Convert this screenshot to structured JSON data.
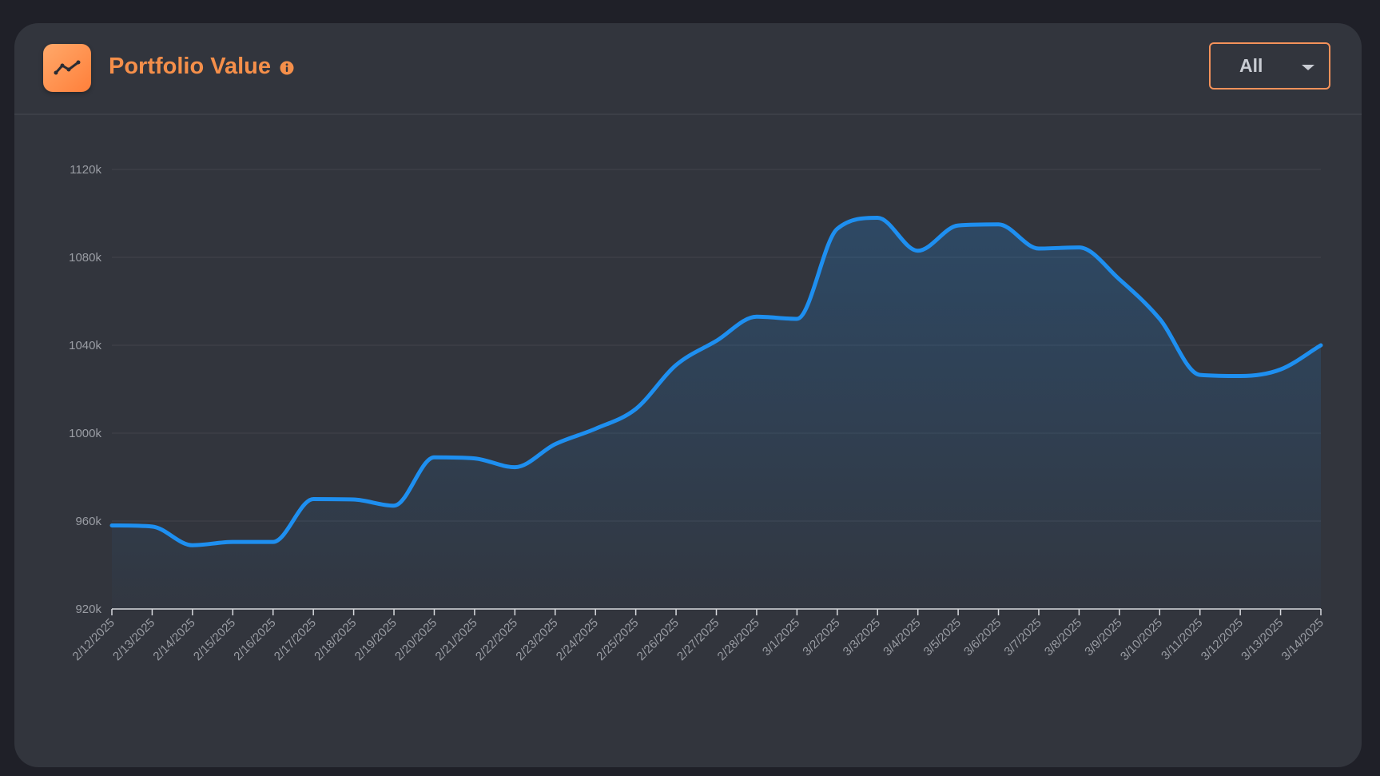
{
  "header": {
    "title": "Portfolio Value",
    "logo_icon": "trending-line-icon",
    "info_icon": "info-icon",
    "range_select": {
      "selected": "All"
    }
  },
  "colors": {
    "accent": "#f58f4a",
    "line": "#1e8ff0",
    "card_bg": "#32353d",
    "page_bg": "#1f2028"
  },
  "chart_data": {
    "type": "area",
    "title": "",
    "xlabel": "",
    "ylabel": "",
    "ylim": [
      920000,
      1120000
    ],
    "yticks": [
      920000,
      960000,
      1000000,
      1040000,
      1080000,
      1120000
    ],
    "ytick_labels": [
      "920k",
      "960k",
      "1000k",
      "1040k",
      "1080k",
      "1120k"
    ],
    "grid": true,
    "legend": "none",
    "x": [
      "2/12/2025",
      "2/13/2025",
      "2/14/2025",
      "2/15/2025",
      "2/16/2025",
      "2/17/2025",
      "2/18/2025",
      "2/19/2025",
      "2/20/2025",
      "2/21/2025",
      "2/22/2025",
      "2/23/2025",
      "2/24/2025",
      "2/25/2025",
      "2/26/2025",
      "2/27/2025",
      "2/28/2025",
      "3/1/2025",
      "3/2/2025",
      "3/3/2025",
      "3/4/2025",
      "3/5/2025",
      "3/6/2025",
      "3/7/2025",
      "3/8/2025",
      "3/9/2025",
      "3/10/2025",
      "3/11/2025",
      "3/12/2025",
      "3/13/2025",
      "3/14/2025"
    ],
    "series": [
      {
        "values": [
          958000,
          957500,
          949000,
          950500,
          950500,
          970000,
          969800,
          967000,
          989000,
          988500,
          984500,
          995000,
          1002000,
          1011000,
          1031000,
          1042000,
          1053000,
          1052000,
          1093000,
          1098000,
          1083000,
          1094500,
          1095000,
          1084000,
          1084500,
          1070000,
          1052000,
          1026500,
          1026000,
          1029000,
          1040000
        ]
      }
    ]
  }
}
